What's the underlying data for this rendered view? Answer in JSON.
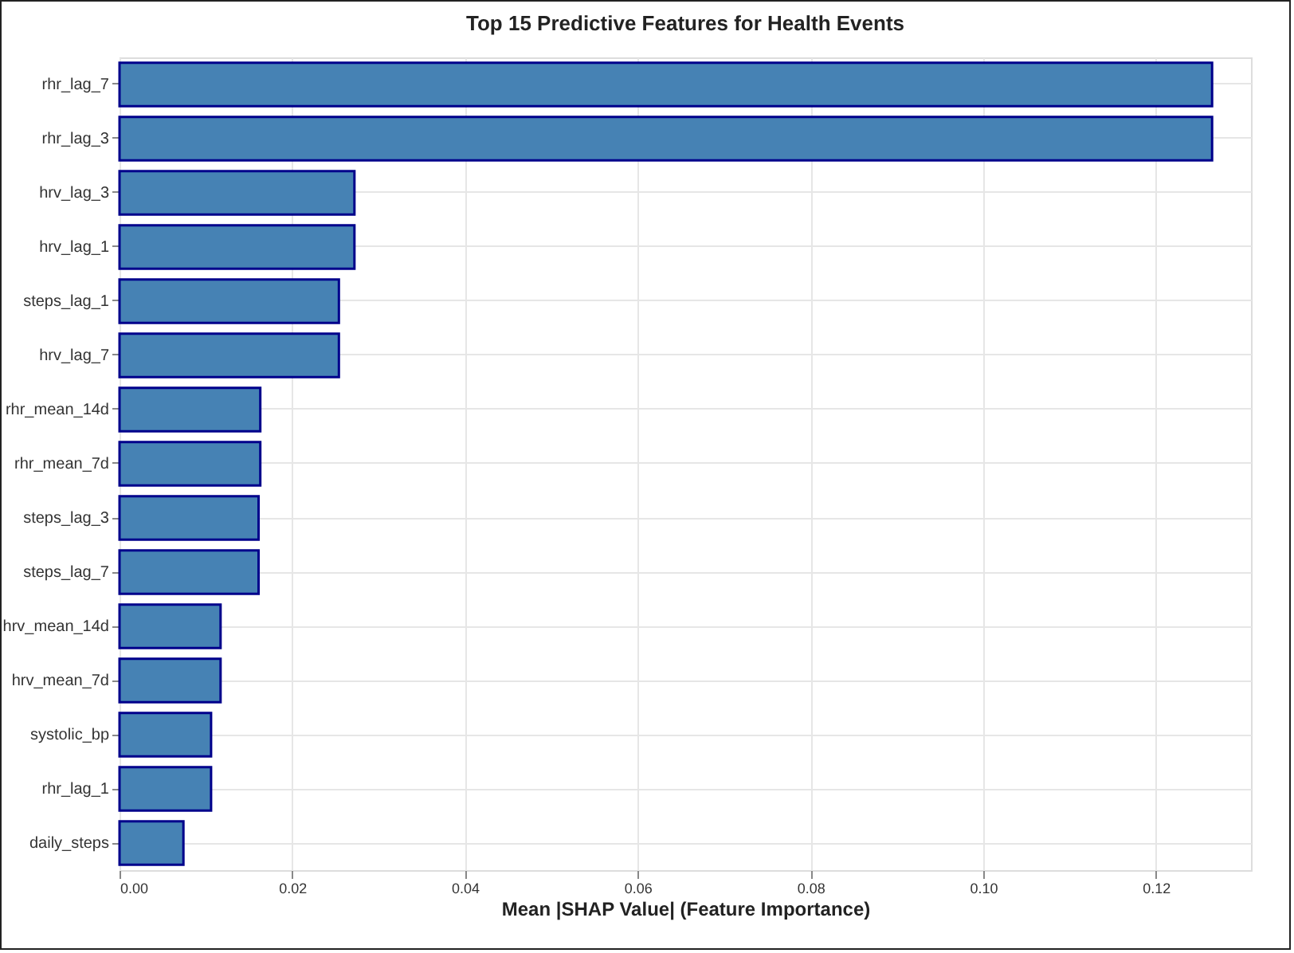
{
  "chart_data": {
    "type": "bar",
    "orientation": "horizontal",
    "title": "Top 15 Predictive Features for Health Events",
    "xlabel": "Mean |SHAP Value| (Feature Importance)",
    "categories": [
      "rhr_lag_7",
      "rhr_lag_3",
      "hrv_lag_3",
      "hrv_lag_1",
      "steps_lag_1",
      "hrv_lag_7",
      "rhr_mean_14d",
      "rhr_mean_7d",
      "steps_lag_3",
      "steps_lag_7",
      "hrv_mean_14d",
      "hrv_mean_7d",
      "systolic_bp",
      "rhr_lag_1",
      "daily_steps"
    ],
    "values": [
      0.1265,
      0.1265,
      0.0272,
      0.0272,
      0.0254,
      0.0254,
      0.0163,
      0.0163,
      0.0161,
      0.0161,
      0.0117,
      0.0117,
      0.0106,
      0.0106,
      0.0074
    ],
    "color": "#4682b4",
    "xlim": [
      0,
      0.131
    ],
    "xticks": [
      {
        "value": 0,
        "label": "0.00"
      },
      {
        "value": 0.02,
        "label": "0.02"
      },
      {
        "value": 0.04,
        "label": "0.04"
      },
      {
        "value": 0.06,
        "label": "0.06"
      },
      {
        "value": 0.08,
        "label": "0.08"
      },
      {
        "value": 0.1,
        "label": "0.10"
      },
      {
        "value": 0.12,
        "label": "0.12"
      }
    ],
    "grid": true
  }
}
